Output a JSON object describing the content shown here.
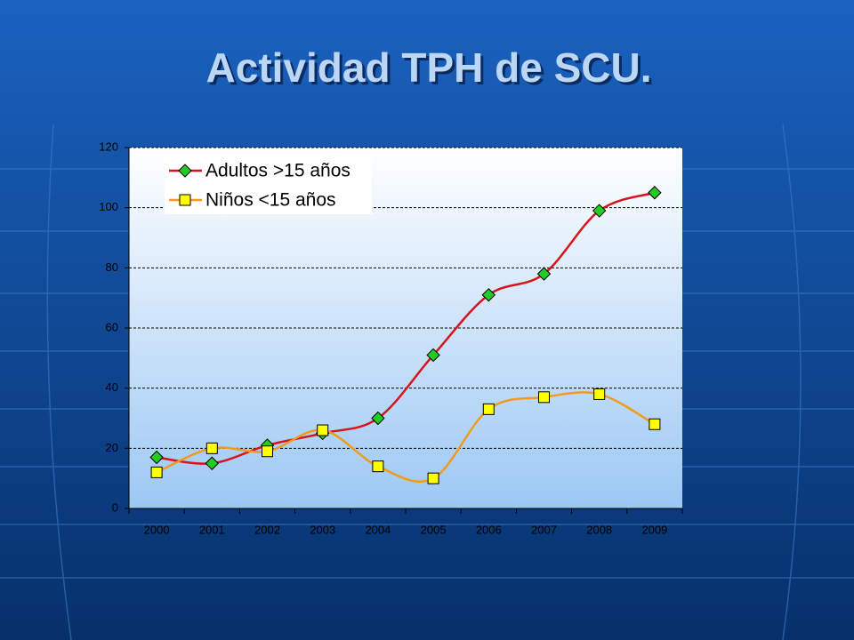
{
  "chart_data": {
    "type": "line",
    "title": "Actividad TPH de SCU.",
    "categories": [
      "2000",
      "2001",
      "2002",
      "2003",
      "2004",
      "2005",
      "2006",
      "2007",
      "2008",
      "2009"
    ],
    "series": [
      {
        "name": "Adultos >15 años",
        "color": "#d8131b",
        "marker": "diamond",
        "marker_color": "#22cc22",
        "values": [
          17,
          15,
          21,
          25,
          30,
          51,
          71,
          78,
          99,
          105
        ]
      },
      {
        "name": "Niños <15 años",
        "color": "#f29a1c",
        "marker": "square",
        "marker_color": "#ffff00",
        "values": [
          12,
          20,
          19,
          26,
          14,
          10,
          33,
          37,
          38,
          28
        ]
      }
    ],
    "ylim": [
      0,
      120
    ],
    "yticks": [
      0,
      20,
      40,
      60,
      80,
      100,
      120
    ],
    "grid": true,
    "smooth": true,
    "legend": "top-left"
  }
}
